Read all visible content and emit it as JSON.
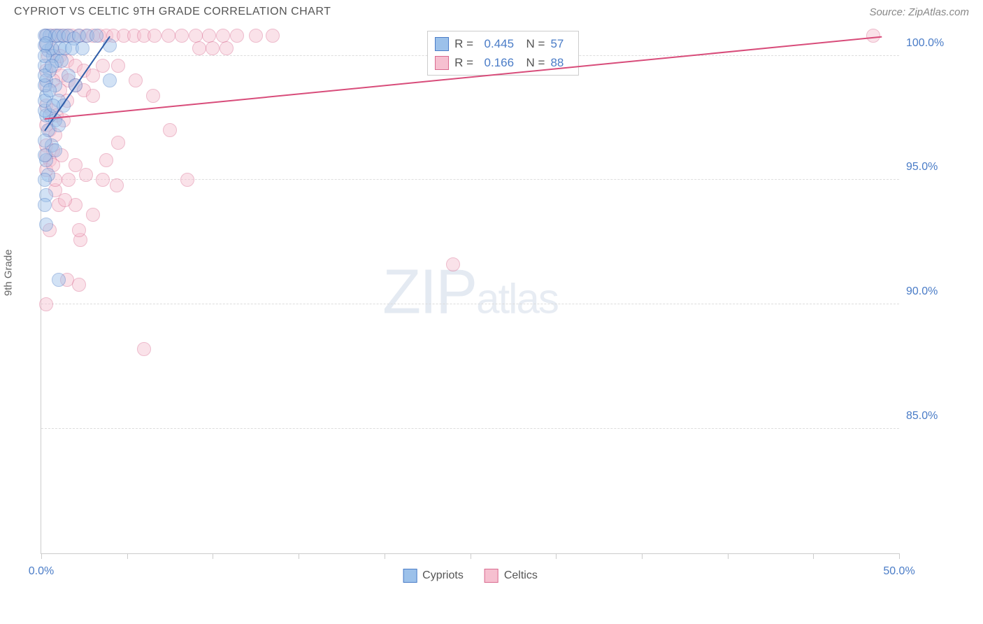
{
  "header": {
    "title": "CYPRIOT VS CELTIC 9TH GRADE CORRELATION CHART",
    "source": "Source: ZipAtlas.com"
  },
  "chart": {
    "type": "scatter",
    "y_axis_label": "9th Grade",
    "xlim": [
      0,
      50
    ],
    "ylim": [
      80,
      101
    ],
    "ytick_values": [
      85.0,
      90.0,
      95.0,
      100.0
    ],
    "ytick_labels": [
      "85.0%",
      "90.0%",
      "95.0%",
      "100.0%"
    ],
    "xtick_values": [
      0,
      5,
      10,
      15,
      20,
      25,
      30,
      35,
      40,
      45,
      50
    ],
    "xtick_labels": {
      "0": "0.0%",
      "50": "50.0%"
    },
    "grid_color": "#dddddd",
    "axis_color": "#cccccc",
    "background_color": "#ffffff",
    "point_radius": 10,
    "point_opacity": 0.45,
    "series": {
      "cypriots": {
        "label": "Cypriots",
        "color_fill": "#9cc1ea",
        "color_stroke": "#4a7cc7",
        "R": "0.445",
        "N": "57",
        "trend": {
          "x1": 0.2,
          "y1": 97.0,
          "x2": 4.0,
          "y2": 100.8,
          "color": "#2f5da8",
          "width": 2
        },
        "points": [
          [
            0.3,
            100.8
          ],
          [
            0.5,
            100.8
          ],
          [
            0.8,
            100.8
          ],
          [
            1.0,
            100.8
          ],
          [
            1.3,
            100.8
          ],
          [
            1.6,
            100.8
          ],
          [
            1.9,
            100.7
          ],
          [
            2.2,
            100.8
          ],
          [
            0.4,
            100.2
          ],
          [
            0.7,
            100.0
          ],
          [
            0.9,
            99.8
          ],
          [
            1.2,
            99.8
          ],
          [
            0.5,
            99.4
          ],
          [
            0.3,
            99.0
          ],
          [
            0.8,
            98.8
          ],
          [
            0.3,
            98.4
          ],
          [
            1.0,
            98.2
          ],
          [
            1.3,
            98.0
          ],
          [
            0.3,
            97.6
          ],
          [
            0.5,
            97.6
          ],
          [
            0.8,
            97.4
          ],
          [
            0.4,
            97.0
          ],
          [
            0.6,
            96.4
          ],
          [
            0.3,
            95.8
          ],
          [
            0.4,
            95.2
          ],
          [
            0.3,
            94.4
          ],
          [
            0.3,
            93.2
          ],
          [
            1.0,
            91.0
          ],
          [
            4.0,
            100.4
          ],
          [
            4.0,
            99.0
          ],
          [
            1.6,
            99.2
          ],
          [
            2.0,
            98.8
          ],
          [
            2.7,
            100.8
          ],
          [
            3.2,
            100.8
          ],
          [
            0.6,
            100.3
          ],
          [
            1.1,
            100.3
          ],
          [
            1.4,
            100.3
          ],
          [
            0.2,
            99.6
          ],
          [
            0.2,
            98.8
          ],
          [
            0.2,
            97.8
          ],
          [
            0.2,
            96.6
          ],
          [
            0.2,
            100.8
          ],
          [
            0.2,
            100.4
          ],
          [
            0.2,
            100.0
          ],
          [
            0.2,
            99.2
          ],
          [
            0.2,
            98.2
          ],
          [
            0.2,
            96.0
          ],
          [
            0.2,
            95.0
          ],
          [
            0.2,
            94.0
          ],
          [
            1.8,
            100.3
          ],
          [
            2.4,
            100.3
          ],
          [
            0.5,
            98.6
          ],
          [
            0.7,
            98.0
          ],
          [
            1.0,
            97.2
          ],
          [
            0.3,
            100.5
          ],
          [
            0.6,
            99.6
          ],
          [
            0.8,
            96.2
          ]
        ]
      },
      "celtics": {
        "label": "Celtics",
        "color_fill": "#f6c0d0",
        "color_stroke": "#d96a8f",
        "R": "0.166",
        "N": "88",
        "trend": {
          "x1": 0.2,
          "y1": 97.5,
          "x2": 49.0,
          "y2": 100.8,
          "color": "#d84c7a",
          "width": 2
        },
        "points": [
          [
            0.3,
            100.8
          ],
          [
            0.6,
            100.8
          ],
          [
            0.9,
            100.8
          ],
          [
            1.2,
            100.8
          ],
          [
            1.5,
            100.8
          ],
          [
            1.8,
            100.8
          ],
          [
            2.2,
            100.8
          ],
          [
            2.6,
            100.8
          ],
          [
            3.0,
            100.8
          ],
          [
            3.4,
            100.8
          ],
          [
            3.8,
            100.8
          ],
          [
            4.2,
            100.8
          ],
          [
            4.8,
            100.8
          ],
          [
            5.4,
            100.8
          ],
          [
            6.0,
            100.8
          ],
          [
            6.6,
            100.8
          ],
          [
            7.4,
            100.8
          ],
          [
            8.2,
            100.8
          ],
          [
            9.0,
            100.8
          ],
          [
            9.8,
            100.8
          ],
          [
            10.6,
            100.8
          ],
          [
            11.4,
            100.8
          ],
          [
            12.5,
            100.8
          ],
          [
            13.5,
            100.8
          ],
          [
            48.5,
            100.8
          ],
          [
            0.4,
            100.0
          ],
          [
            0.8,
            99.6
          ],
          [
            1.2,
            99.2
          ],
          [
            1.6,
            99.0
          ],
          [
            2.0,
            98.8
          ],
          [
            2.5,
            98.6
          ],
          [
            3.0,
            98.4
          ],
          [
            0.3,
            98.0
          ],
          [
            0.6,
            97.8
          ],
          [
            0.9,
            97.6
          ],
          [
            1.3,
            97.4
          ],
          [
            0.3,
            97.2
          ],
          [
            0.5,
            97.0
          ],
          [
            0.8,
            96.8
          ],
          [
            0.3,
            96.4
          ],
          [
            0.7,
            96.2
          ],
          [
            1.2,
            96.0
          ],
          [
            2.0,
            95.6
          ],
          [
            2.6,
            95.2
          ],
          [
            3.6,
            95.0
          ],
          [
            4.4,
            94.8
          ],
          [
            0.5,
            95.8
          ],
          [
            0.3,
            95.4
          ],
          [
            1.6,
            95.0
          ],
          [
            0.8,
            94.6
          ],
          [
            2.0,
            94.0
          ],
          [
            3.0,
            93.6
          ],
          [
            0.5,
            93.0
          ],
          [
            8.5,
            95.0
          ],
          [
            2.3,
            92.6
          ],
          [
            1.5,
            91.0
          ],
          [
            2.2,
            90.8
          ],
          [
            0.3,
            90.0
          ],
          [
            6.0,
            88.2
          ],
          [
            24.0,
            91.6
          ],
          [
            0.3,
            99.4
          ],
          [
            0.7,
            99.0
          ],
          [
            1.1,
            98.6
          ],
          [
            1.5,
            98.2
          ],
          [
            0.3,
            96.0
          ],
          [
            0.7,
            95.6
          ],
          [
            4.5,
            99.6
          ],
          [
            5.5,
            99.0
          ],
          [
            6.5,
            98.4
          ],
          [
            7.5,
            97.0
          ],
          [
            0.3,
            100.4
          ],
          [
            0.7,
            100.2
          ],
          [
            1.1,
            100.0
          ],
          [
            1.5,
            99.8
          ],
          [
            2.0,
            99.6
          ],
          [
            2.5,
            99.4
          ],
          [
            3.0,
            99.2
          ],
          [
            3.6,
            99.6
          ],
          [
            1.0,
            94.0
          ],
          [
            2.2,
            93.0
          ],
          [
            3.8,
            95.8
          ],
          [
            4.5,
            96.5
          ],
          [
            0.3,
            98.8
          ],
          [
            0.8,
            95.0
          ],
          [
            1.4,
            94.2
          ],
          [
            9.2,
            100.3
          ],
          [
            10.0,
            100.3
          ],
          [
            10.8,
            100.3
          ]
        ]
      }
    },
    "legend_stats_pos": {
      "left_pct": 45,
      "top_pct": 0
    },
    "bottom_legend": [
      "cypriots",
      "celtics"
    ],
    "watermark": {
      "zip": "ZIP",
      "atlas": "atlas"
    }
  }
}
